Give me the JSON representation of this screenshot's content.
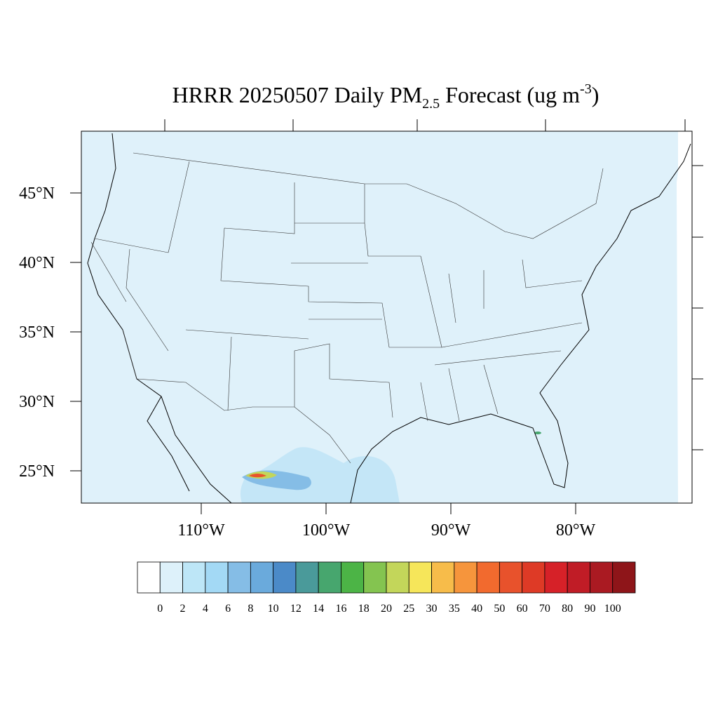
{
  "title": {
    "main": "HRRR 20250507 Daily PM",
    "subscript": "2.5",
    "middle": " Forecast (ug m",
    "superscript": "-3",
    "end": ")"
  },
  "map": {
    "lat_ticks": [
      {
        "value": 45,
        "label": "45°N"
      },
      {
        "value": 40,
        "label": "40°N"
      },
      {
        "value": 35,
        "label": "35°N"
      },
      {
        "value": 30,
        "label": "30°N"
      },
      {
        "value": 25,
        "label": "25°N"
      }
    ],
    "lon_ticks": [
      {
        "value": -110,
        "label": "110°W"
      },
      {
        "value": -100,
        "label": "100°W"
      },
      {
        "value": -90,
        "label": "90°W"
      },
      {
        "value": -80,
        "label": "80°W"
      }
    ]
  },
  "colorbar": {
    "levels": [
      0,
      2,
      4,
      6,
      8,
      10,
      12,
      14,
      16,
      18,
      20,
      25,
      30,
      35,
      40,
      50,
      60,
      70,
      80,
      90,
      100
    ],
    "colors": [
      "#ffffff",
      "#ddf1fa",
      "#bde6f7",
      "#a3d9f5",
      "#85bde6",
      "#6aaadc",
      "#4b8ac8",
      "#4a9a9a",
      "#47a66e",
      "#4cb446",
      "#84c450",
      "#c3d65a",
      "#f6e65a",
      "#f7bc4a",
      "#f6953c",
      "#f26a2e",
      "#e8522c",
      "#de3a26",
      "#d62128",
      "#c01c26",
      "#aa1a22",
      "#8e1519"
    ]
  }
}
